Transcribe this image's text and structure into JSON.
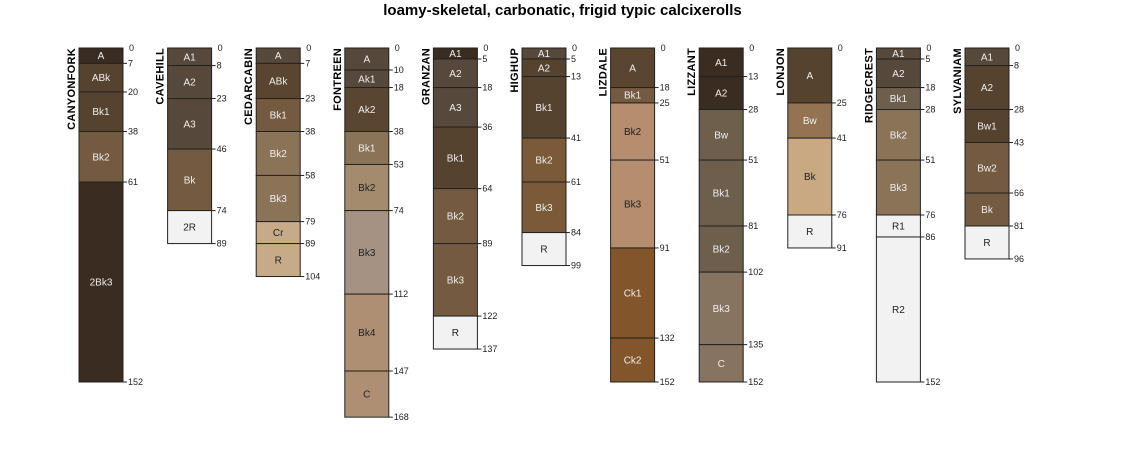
{
  "title": "loamy-skeletal, carbonatic, frigid typic calcixerolls",
  "chart_data": {
    "type": "soil-profile",
    "depth_units": "cm",
    "max_depth": 168,
    "profiles": [
      {
        "name": "CANYONFORK",
        "horizons": [
          {
            "name": "A",
            "top": 0,
            "bottom": 7,
            "color": "#3a2c20"
          },
          {
            "name": "ABk",
            "top": 7,
            "bottom": 20,
            "color": "#56432f"
          },
          {
            "name": "Bk1",
            "top": 20,
            "bottom": 38,
            "color": "#56432f"
          },
          {
            "name": "Bk2",
            "top": 38,
            "bottom": 61,
            "color": "#735a40"
          },
          {
            "name": "2Bk3",
            "top": 61,
            "bottom": 152,
            "color": "#3a2c20"
          }
        ]
      },
      {
        "name": "CAVEHILL",
        "horizons": [
          {
            "name": "A1",
            "top": 0,
            "bottom": 8,
            "color": "#56483a"
          },
          {
            "name": "A2",
            "top": 8,
            "bottom": 23,
            "color": "#56483a"
          },
          {
            "name": "A3",
            "top": 23,
            "bottom": 46,
            "color": "#56483a"
          },
          {
            "name": "Bk",
            "top": 46,
            "bottom": 74,
            "color": "#735a40"
          },
          {
            "name": "2R",
            "top": 74,
            "bottom": 89,
            "color": "#f2f2f2"
          }
        ]
      },
      {
        "name": "CEDARCABIN",
        "horizons": [
          {
            "name": "A",
            "top": 0,
            "bottom": 7,
            "color": "#56483a"
          },
          {
            "name": "ABk",
            "top": 7,
            "bottom": 23,
            "color": "#5a4630"
          },
          {
            "name": "Bk1",
            "top": 23,
            "bottom": 38,
            "color": "#735a40"
          },
          {
            "name": "Bk2",
            "top": 38,
            "bottom": 58,
            "color": "#8b7358"
          },
          {
            "name": "Bk3",
            "top": 58,
            "bottom": 79,
            "color": "#8b7358"
          },
          {
            "name": "Cr",
            "top": 79,
            "bottom": 89,
            "color": "#c7aa88"
          },
          {
            "name": "R",
            "top": 89,
            "bottom": 104,
            "color": "#c7aa88"
          }
        ]
      },
      {
        "name": "FONTREEN",
        "horizons": [
          {
            "name": "A",
            "top": 0,
            "bottom": 10,
            "color": "#56483a"
          },
          {
            "name": "Ak1",
            "top": 10,
            "bottom": 18,
            "color": "#56483a"
          },
          {
            "name": "Ak2",
            "top": 18,
            "bottom": 38,
            "color": "#5a4630"
          },
          {
            "name": "Bk1",
            "top": 38,
            "bottom": 53,
            "color": "#8b7358"
          },
          {
            "name": "Bk2",
            "top": 53,
            "bottom": 74,
            "color": "#a58b6e"
          },
          {
            "name": "Bk3",
            "top": 74,
            "bottom": 112,
            "color": "#a69282"
          },
          {
            "name": "Bk4",
            "top": 112,
            "bottom": 147,
            "color": "#ae8f74"
          },
          {
            "name": "C",
            "top": 147,
            "bottom": 168,
            "color": "#ae8f74"
          }
        ]
      },
      {
        "name": "GRANZAN",
        "horizons": [
          {
            "name": "A1",
            "top": 0,
            "bottom": 5,
            "color": "#3a2c20"
          },
          {
            "name": "A2",
            "top": 5,
            "bottom": 18,
            "color": "#56483a"
          },
          {
            "name": "A3",
            "top": 18,
            "bottom": 36,
            "color": "#56483a"
          },
          {
            "name": "Bk1",
            "top": 36,
            "bottom": 64,
            "color": "#56432f"
          },
          {
            "name": "Bk2",
            "top": 64,
            "bottom": 89,
            "color": "#735a40"
          },
          {
            "name": "Bk3",
            "top": 89,
            "bottom": 122,
            "color": "#735a40"
          },
          {
            "name": "R",
            "top": 122,
            "bottom": 137,
            "color": "#f2f2f2"
          }
        ]
      },
      {
        "name": "HIGHUP",
        "horizons": [
          {
            "name": "A1",
            "top": 0,
            "bottom": 5,
            "color": "#56483a"
          },
          {
            "name": "A2",
            "top": 5,
            "bottom": 13,
            "color": "#56432f"
          },
          {
            "name": "Bk1",
            "top": 13,
            "bottom": 41,
            "color": "#56432f"
          },
          {
            "name": "Bk2",
            "top": 41,
            "bottom": 61,
            "color": "#7a5a38"
          },
          {
            "name": "Bk3",
            "top": 61,
            "bottom": 84,
            "color": "#7a5a38"
          },
          {
            "name": "R",
            "top": 84,
            "bottom": 99,
            "color": "#f2f2f2"
          }
        ]
      },
      {
        "name": "LIZDALE",
        "horizons": [
          {
            "name": "A",
            "top": 0,
            "bottom": 18,
            "color": "#5a4630"
          },
          {
            "name": "Bk1",
            "top": 18,
            "bottom": 25,
            "color": "#735a40"
          },
          {
            "name": "Bk2",
            "top": 25,
            "bottom": 51,
            "color": "#b48e6e"
          },
          {
            "name": "Bk3",
            "top": 51,
            "bottom": 91,
            "color": "#b48e6e"
          },
          {
            "name": "Ck1",
            "top": 91,
            "bottom": 132,
            "color": "#83552a"
          },
          {
            "name": "Ck2",
            "top": 132,
            "bottom": 152,
            "color": "#83552a"
          }
        ]
      },
      {
        "name": "LIZZANT",
        "horizons": [
          {
            "name": "A1",
            "top": 0,
            "bottom": 13,
            "color": "#3a2c20"
          },
          {
            "name": "A2",
            "top": 13,
            "bottom": 28,
            "color": "#3a2c20"
          },
          {
            "name": "Bw",
            "top": 28,
            "bottom": 51,
            "color": "#6e5e4c"
          },
          {
            "name": "Bk1",
            "top": 51,
            "bottom": 81,
            "color": "#6e5e4c"
          },
          {
            "name": "Bk2",
            "top": 81,
            "bottom": 102,
            "color": "#6e5e4c"
          },
          {
            "name": "Bk3",
            "top": 102,
            "bottom": 135,
            "color": "#877460"
          },
          {
            "name": "C",
            "top": 135,
            "bottom": 152,
            "color": "#877460"
          }
        ]
      },
      {
        "name": "LONJON",
        "horizons": [
          {
            "name": "A",
            "top": 0,
            "bottom": 25,
            "color": "#56432f"
          },
          {
            "name": "Bw",
            "top": 25,
            "bottom": 41,
            "color": "#937352"
          },
          {
            "name": "Bk",
            "top": 41,
            "bottom": 76,
            "color": "#c8a981"
          },
          {
            "name": "R",
            "top": 76,
            "bottom": 91,
            "color": "#f2f2f2"
          }
        ]
      },
      {
        "name": "RIDGECREST",
        "horizons": [
          {
            "name": "A1",
            "top": 0,
            "bottom": 5,
            "color": "#56483a"
          },
          {
            "name": "A2",
            "top": 5,
            "bottom": 18,
            "color": "#56483a"
          },
          {
            "name": "Bk1",
            "top": 18,
            "bottom": 28,
            "color": "#6e5e4c"
          },
          {
            "name": "Bk2",
            "top": 28,
            "bottom": 51,
            "color": "#8b7358"
          },
          {
            "name": "Bk3",
            "top": 51,
            "bottom": 76,
            "color": "#8b7358"
          },
          {
            "name": "R1",
            "top": 76,
            "bottom": 86,
            "color": "#f2f2f2"
          },
          {
            "name": "R2",
            "top": 86,
            "bottom": 152,
            "color": "#f2f2f2"
          }
        ]
      },
      {
        "name": "SYLVANIAM",
        "horizons": [
          {
            "name": "A1",
            "top": 0,
            "bottom": 8,
            "color": "#56483a"
          },
          {
            "name": "A2",
            "top": 8,
            "bottom": 28,
            "color": "#56432f"
          },
          {
            "name": "Bw1",
            "top": 28,
            "bottom": 43,
            "color": "#56432f"
          },
          {
            "name": "Bw2",
            "top": 43,
            "bottom": 66,
            "color": "#735a40"
          },
          {
            "name": "Bk",
            "top": 66,
            "bottom": 81,
            "color": "#735a40"
          },
          {
            "name": "R",
            "top": 81,
            "bottom": 96,
            "color": "#f2f2f2"
          }
        ]
      }
    ]
  }
}
